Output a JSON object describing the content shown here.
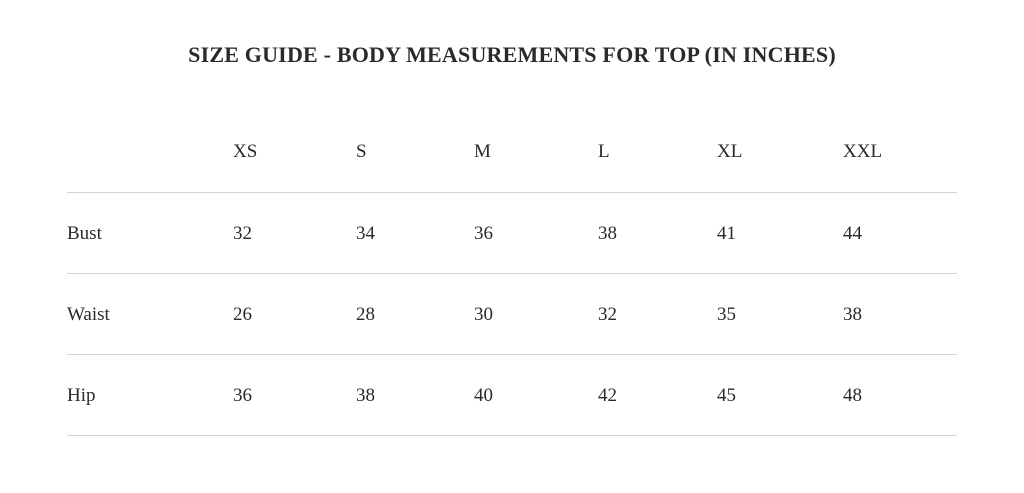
{
  "title": "SIZE GUIDE - BODY MEASUREMENTS FOR TOP (IN INCHES)",
  "table": {
    "headers": [
      "",
      "XS",
      "S",
      "M",
      "L",
      "XL",
      "XXL"
    ],
    "rows": [
      {
        "label": "Bust",
        "values": [
          "32",
          "34",
          "36",
          "38",
          "41",
          "44"
        ]
      },
      {
        "label": "Waist",
        "values": [
          "26",
          "28",
          "30",
          "32",
          "35",
          "38"
        ]
      },
      {
        "label": "Hip",
        "values": [
          "36",
          "38",
          "40",
          "42",
          "45",
          "48"
        ]
      }
    ]
  }
}
